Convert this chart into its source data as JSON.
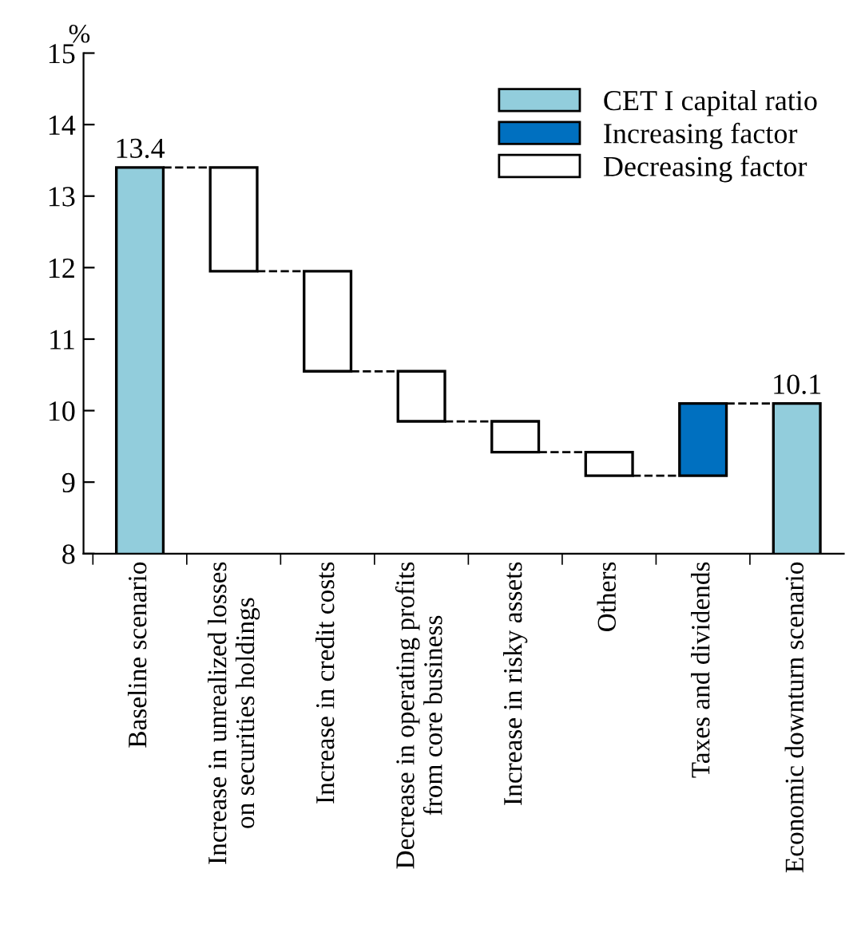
{
  "chart_data": {
    "type": "bar",
    "ylabel": "%",
    "categories": [
      "Baseline scenario",
      "Increase in unrealized losses\non securities holdings",
      "Increase in credit costs",
      "Decrease in operating profits\nfrom core business",
      "Increase in risky assets",
      "Others",
      "Taxes and dividends",
      "Economic downturn scenario"
    ],
    "series": [
      {
        "name": "CET I capital ratio",
        "color": "#92cddc",
        "values": [
          13.4,
          null,
          null,
          null,
          null,
          null,
          null,
          10.1
        ],
        "value_labels": [
          "13.4",
          null,
          null,
          null,
          null,
          null,
          null,
          "10.1"
        ]
      },
      {
        "name": "Increasing factor",
        "color": "#0070c0",
        "base": [
          null,
          null,
          null,
          null,
          null,
          null,
          9.09,
          null
        ],
        "values": [
          null,
          null,
          null,
          null,
          null,
          null,
          1.01,
          null
        ]
      },
      {
        "name": "Decreasing factor",
        "color": "#ffffff",
        "base": [
          null,
          13.4,
          11.95,
          10.55,
          9.85,
          9.42,
          null,
          null
        ],
        "values": [
          null,
          -1.45,
          -1.4,
          -0.7,
          -0.43,
          -0.33,
          null,
          null
        ]
      }
    ],
    "ylim": [
      8,
      15
    ],
    "yticks": [
      8,
      9,
      10,
      11,
      12,
      13,
      14,
      15
    ],
    "grid": false,
    "legend": "top right"
  }
}
